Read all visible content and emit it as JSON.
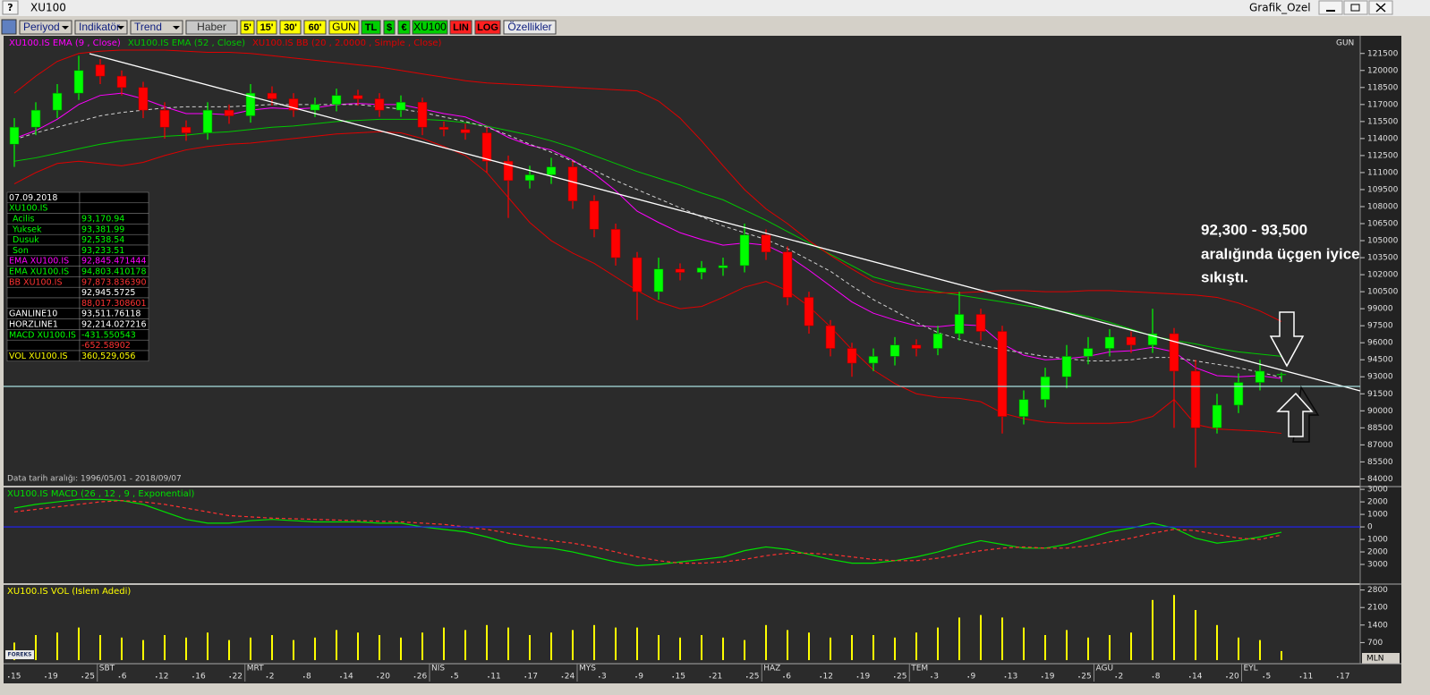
{
  "window": {
    "help": "?",
    "symbol": "XU100",
    "template": "Grafik_Ozel",
    "logo": "FOREKS"
  },
  "toolbar": [
    "Periyod",
    "Indikatör",
    "Trend",
    "Haber",
    "5'",
    "15'",
    "30'",
    "60'",
    "GUN",
    "TL",
    "$",
    "€",
    "XU100",
    "LIN",
    "LOG",
    "Özellikler"
  ],
  "info_panel": [
    [
      "07.09.2018",
      null
    ],
    [
      "XU100.IS",
      null
    ],
    [
      "Acilis",
      "93,170.94"
    ],
    [
      "Yuksek",
      "93,381.99"
    ],
    [
      "Dusuk",
      "92,538.54"
    ],
    [
      "Son",
      "93,233.51"
    ],
    [
      "EMA XU100.IS",
      "92,845.471444"
    ],
    [
      "EMA XU100.IS",
      "94,803.410178"
    ],
    [
      "BB XU100.IS",
      "97,873.836390"
    ],
    [
      null,
      "92,945.5725"
    ],
    [
      null,
      "88,017.308601"
    ],
    [
      "GANLINE10",
      "93,511.76118"
    ],
    [
      "HORZLINE1",
      "92,214.027216"
    ],
    [
      "MACD XU100.IS",
      "-431.550543"
    ],
    [
      null,
      "-652.58902"
    ],
    [
      "VOL XU100.IS",
      "360,529,056"
    ]
  ],
  "annotation": [
    "92,300 - 93,500",
    "aralığında üçgen iyice",
    "sıkıştı."
  ],
  "chart_data": {
    "type": "candlestick",
    "period_label": "GUN",
    "date_range": "Data tarih aralığı: 1996/05/01 - 2018/09/07",
    "ohlc": {
      "up_color": "#00ff00",
      "down_color": "#ff0000",
      "open": [
        113500,
        115000,
        116500,
        118000,
        120500,
        119500,
        118500,
        116500,
        115000,
        114500,
        116500,
        116000,
        118000,
        117500,
        116500,
        117000,
        117800,
        117500,
        116500,
        117200,
        115000,
        114800,
        114500,
        112000,
        110300,
        110800,
        111500,
        108500,
        106000,
        103500,
        100500,
        102500,
        102200,
        102600,
        102800,
        105500,
        104000,
        100000,
        97500,
        95500,
        94200,
        94800,
        95800,
        95500,
        96800,
        98500,
        97000,
        89500,
        91000,
        93000,
        94800,
        95500,
        96500,
        95800,
        96800,
        93500,
        88500,
        90500,
        92500,
        93170.94
      ],
      "high": [
        115800,
        117200,
        118800,
        121300,
        121000,
        120000,
        119000,
        117200,
        115600,
        117200,
        117000,
        118800,
        118600,
        118000,
        117600,
        118400,
        118300,
        118000,
        117800,
        117600,
        115500,
        115300,
        115000,
        112500,
        111600,
        112300,
        112000,
        109000,
        106500,
        104000,
        103500,
        103000,
        103200,
        103500,
        106500,
        106000,
        104500,
        100500,
        98000,
        96000,
        95500,
        96500,
        96300,
        97500,
        100500,
        99000,
        97500,
        91800,
        93800,
        95800,
        96500,
        97200,
        97000,
        99000,
        97300,
        94500,
        91500,
        93300,
        94500,
        93381.99
      ],
      "low": [
        111500,
        114300,
        115800,
        117400,
        118800,
        117800,
        115800,
        114000,
        113800,
        113900,
        115300,
        115400,
        116900,
        115900,
        115900,
        116400,
        116900,
        115900,
        115900,
        114300,
        114200,
        113900,
        111000,
        107000,
        109600,
        110000,
        107800,
        105300,
        102800,
        98000,
        99800,
        101500,
        101600,
        101900,
        102200,
        103300,
        99300,
        96800,
        94800,
        93000,
        93500,
        94000,
        94800,
        94900,
        96200,
        96200,
        88000,
        88800,
        90300,
        92000,
        94100,
        94800,
        95100,
        95100,
        88500,
        85000,
        88000,
        89800,
        91800,
        92538.54
      ],
      "close": [
        115000,
        116500,
        118000,
        120000,
        119500,
        118500,
        116500,
        115000,
        114500,
        116500,
        116000,
        118000,
        117500,
        116500,
        117000,
        117800,
        117500,
        116500,
        117200,
        115000,
        114800,
        114500,
        112000,
        110300,
        110800,
        111500,
        108500,
        106000,
        103500,
        100500,
        102500,
        102200,
        102600,
        102800,
        105500,
        104000,
        100000,
        97500,
        95500,
        94200,
        94800,
        95800,
        95500,
        96800,
        98500,
        97000,
        89500,
        91000,
        93000,
        94800,
        95500,
        96500,
        95800,
        96800,
        93500,
        88500,
        90500,
        92500,
        93500,
        93233.51
      ]
    },
    "overlays": [
      {
        "name": "XU100.IS EMA (9 , Close)",
        "color": "#ff00ff",
        "values": [
          114000,
          114700,
          115700,
          117000,
          117800,
          118000,
          117500,
          116800,
          116200,
          116200,
          116100,
          116500,
          116700,
          116600,
          116700,
          117000,
          117100,
          117000,
          117000,
          116600,
          116200,
          115900,
          115100,
          114100,
          113400,
          113000,
          112100,
          110900,
          109400,
          107600,
          106600,
          105700,
          105100,
          104600,
          104800,
          104600,
          103700,
          102400,
          101000,
          99600,
          98600,
          98000,
          97500,
          97400,
          97600,
          97500,
          95900,
          94900,
          94500,
          94600,
          94800,
          95200,
          95300,
          95600,
          95200,
          93800,
          93100,
          93000,
          93100,
          92845.47
        ]
      },
      {
        "name": "XU100.IS EMA (52 , Close)",
        "color": "#00c800",
        "values": [
          112000,
          112300,
          112700,
          113100,
          113500,
          113800,
          114000,
          114200,
          114300,
          114500,
          114600,
          114800,
          115000,
          115100,
          115300,
          115500,
          115600,
          115700,
          115700,
          115700,
          115600,
          115400,
          115100,
          114700,
          114300,
          113800,
          113200,
          112500,
          111800,
          111100,
          110500,
          109900,
          109200,
          108600,
          107700,
          106800,
          105800,
          104800,
          103800,
          102800,
          101800,
          101300,
          100900,
          100500,
          100200,
          99900,
          99600,
          99300,
          99000,
          98700,
          98300,
          97800,
          97200,
          96600,
          96200,
          95900,
          95500,
          95200,
          95000,
          94803.41
        ]
      },
      {
        "name": "XU100.IS BB (20 , 2.0000 , Simple , Close)",
        "color": "#e00000",
        "middle_color": "#d0d0d0",
        "upper": [
          118000,
          119500,
          120800,
          121500,
          121700,
          121800,
          121800,
          121800,
          121700,
          121600,
          121600,
          121500,
          121300,
          121100,
          120900,
          120700,
          120500,
          120300,
          120000,
          119700,
          119400,
          119100,
          118900,
          118800,
          118700,
          118600,
          118500,
          118400,
          118300,
          118200,
          117300,
          115800,
          113800,
          111600,
          109500,
          107800,
          106500,
          105000,
          103700,
          102500,
          101400,
          100800,
          100500,
          100400,
          100400,
          100500,
          100600,
          100600,
          100500,
          100500,
          100600,
          100600,
          100500,
          100400,
          100300,
          100200,
          100000,
          99500,
          98800,
          97873.84
        ],
        "middle": [
          113900,
          114500,
          115000,
          115500,
          116000,
          116300,
          116500,
          116700,
          116800,
          116800,
          116800,
          116900,
          117000,
          117000,
          117000,
          117000,
          117000,
          116800,
          116600,
          116300,
          115900,
          115500,
          115000,
          114300,
          113500,
          112800,
          112000,
          111200,
          110300,
          109500,
          108700,
          107900,
          107100,
          106300,
          105700,
          105100,
          104300,
          103300,
          102300,
          101000,
          99800,
          98800,
          97800,
          96900,
          96300,
          95800,
          95400,
          95100,
          94800,
          94600,
          94400,
          94400,
          94500,
          94700,
          94700,
          94400,
          94100,
          93800,
          93400,
          92945.57
        ],
        "lower": [
          110000,
          111000,
          111800,
          112000,
          111800,
          111600,
          111900,
          112500,
          113000,
          113300,
          113500,
          113600,
          113800,
          114000,
          114200,
          114400,
          114500,
          114600,
          114500,
          114000,
          113300,
          112500,
          111000,
          108800,
          106600,
          105000,
          103900,
          103000,
          101800,
          100600,
          99600,
          99000,
          99200,
          100000,
          100900,
          101400,
          100600,
          99200,
          97400,
          95400,
          93600,
          92400,
          91500,
          91200,
          91100,
          90800,
          89800,
          89300,
          89000,
          88900,
          88900,
          88900,
          89000,
          89500,
          91000,
          88800,
          88400,
          88300,
          88200,
          88017.31
        ]
      }
    ],
    "ylim": [
      83400,
      122900
    ],
    "yticks": [
      84000,
      85500,
      87000,
      88500,
      90000,
      91500,
      93000,
      94500,
      96000,
      97500,
      99000,
      100500,
      102000,
      103500,
      105000,
      106500,
      108000,
      109500,
      111000,
      112500,
      114000,
      115500,
      117000,
      118500,
      120000,
      121500
    ],
    "x_day_labels": [
      "15",
      "19",
      "25",
      "6",
      "12",
      "16",
      "22",
      "2",
      "8",
      "14",
      "20",
      "26",
      "5",
      "11",
      "17",
      "24",
      "3",
      "9",
      "15",
      "21",
      "25",
      "6",
      "12",
      "19",
      "25",
      "3",
      "9",
      "13",
      "19",
      "25",
      "2",
      "8",
      "14",
      "20",
      "5",
      "11",
      "17"
    ],
    "x_month_labels": [
      null,
      null,
      null,
      "SBT",
      null,
      null,
      null,
      "MRT",
      null,
      null,
      null,
      null,
      "NIS",
      null,
      null,
      null,
      "MYS",
      null,
      null,
      null,
      null,
      "HAZ",
      null,
      null,
      null,
      "TEM",
      null,
      null,
      null,
      null,
      "AGU",
      null,
      null,
      null,
      "EYL",
      null,
      null
    ],
    "macd": {
      "title": "XU100.IS MACD (26 , 12 , 9 , Exponential)",
      "zero_color": "#2020ff",
      "ylim": [
        -4500,
        3150
      ],
      "yticks": [
        3000,
        2000,
        1000,
        0,
        {
          "value": -1000,
          "label": "1000"
        },
        {
          "value": -2000,
          "label": "2000"
        },
        {
          "value": -3000,
          "label": "3000"
        }
      ],
      "series": [
        {
          "color": "#00e000",
          "values": [
            1500,
            1800,
            2000,
            2200,
            2200,
            2100,
            1800,
            1200,
            600,
            300,
            300,
            500,
            600,
            500,
            400,
            400,
            400,
            300,
            300,
            0,
            -200,
            -400,
            -800,
            -1300,
            -1600,
            -1700,
            -2000,
            -2400,
            -2800,
            -3100,
            -3000,
            -2800,
            -2600,
            -2400,
            -1900,
            -1600,
            -1800,
            -2200,
            -2600,
            -2900,
            -2900,
            -2700,
            -2400,
            -2000,
            -1500,
            -1100,
            -1400,
            -1700,
            -1700,
            -1400,
            -900,
            -400,
            -100,
            300,
            -100,
            -900,
            -1300,
            -1100,
            -800,
            -431.55
          ]
        },
        {
          "color": "#ff3030",
          "dashed": true,
          "values": [
            1200,
            1400,
            1600,
            1800,
            2000,
            2100,
            2000,
            1800,
            1500,
            1200,
            900,
            800,
            700,
            650,
            600,
            550,
            500,
            450,
            400,
            300,
            200,
            0,
            -200,
            -500,
            -800,
            -1100,
            -1300,
            -1600,
            -2000,
            -2400,
            -2700,
            -2900,
            -2900,
            -2800,
            -2600,
            -2300,
            -2100,
            -2100,
            -2200,
            -2400,
            -2600,
            -2700,
            -2700,
            -2500,
            -2200,
            -1900,
            -1700,
            -1600,
            -1700,
            -1700,
            -1500,
            -1200,
            -900,
            -500,
            -200,
            -300,
            -600,
            -900,
            -1000,
            -652.59
          ]
        }
      ]
    },
    "volume": {
      "title": "XU100.IS VOL (Islem Adedi)",
      "color": "#ffff00",
      "unit_label": "MLN",
      "ylim": [
        0,
        3000
      ],
      "yticks": [
        700,
        1400,
        2100,
        2800
      ],
      "values": [
        700,
        1000,
        1100,
        1300,
        1000,
        900,
        800,
        1000,
        900,
        1100,
        800,
        900,
        1000,
        800,
        900,
        1200,
        1100,
        1000,
        900,
        1100,
        1300,
        1200,
        1400,
        1300,
        1000,
        1100,
        1200,
        1400,
        1300,
        1300,
        1000,
        900,
        1000,
        900,
        800,
        1400,
        1200,
        1100,
        900,
        1000,
        1000,
        900,
        1100,
        1300,
        1700,
        1800,
        1700,
        1300,
        1000,
        1200,
        900,
        1000,
        1100,
        2400,
        2600,
        2000,
        1400,
        900,
        800,
        360.53
      ]
    }
  }
}
